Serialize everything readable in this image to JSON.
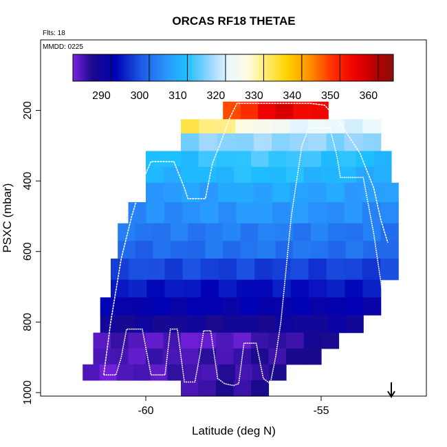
{
  "chart_data": {
    "type": "heatmap",
    "title": "ORCAS RF18 THETAE",
    "flights_label": "Flts: 18",
    "date_label": "MMDD: 0225",
    "xlabel": "Latitude (deg N)",
    "ylabel": "PSXC (mbar)",
    "xlim": [
      -63,
      -52
    ],
    "ylim": [
      1010,
      0
    ],
    "x_ticks": [
      -60,
      -55
    ],
    "x_tick_labels": [
      "-60",
      "-55"
    ],
    "y_ticks": [
      200,
      400,
      600,
      800,
      1000
    ],
    "y_tick_labels": [
      "200",
      "400",
      "600",
      "800",
      "1000"
    ],
    "colorbar": {
      "min": 280,
      "max": 364,
      "ticks": [
        290,
        300,
        310,
        320,
        330,
        340,
        350,
        360
      ],
      "tick_labels": [
        "290",
        "300",
        "310",
        "320",
        "330",
        "340",
        "350",
        "360"
      ],
      "stops": [
        {
          "v": 280,
          "c": "#7a22e0"
        },
        {
          "v": 285,
          "c": "#1a0a8c"
        },
        {
          "v": 291,
          "c": "#0000b4"
        },
        {
          "v": 298,
          "c": "#1e5ae6"
        },
        {
          "v": 305,
          "c": "#2a9aff"
        },
        {
          "v": 310,
          "c": "#1ec0ff"
        },
        {
          "v": 316,
          "c": "#9ad6ff"
        },
        {
          "v": 321,
          "c": "#eaf8ff"
        },
        {
          "v": 326,
          "c": "#fffbe0"
        },
        {
          "v": 330,
          "c": "#ffee80"
        },
        {
          "v": 336,
          "c": "#ffd400"
        },
        {
          "v": 342,
          "c": "#ff9000"
        },
        {
          "v": 348,
          "c": "#ff3000"
        },
        {
          "v": 354,
          "c": "#ee0000"
        },
        {
          "v": 360,
          "c": "#b00000"
        },
        {
          "v": 364,
          "c": "#8a1010"
        }
      ]
    },
    "rows": [
      {
        "p_top": 175,
        "p_bot": 225,
        "x0": -57.8,
        "x1": -54.8,
        "t_left": 343,
        "t_mid": 356,
        "t_right": 352
      },
      {
        "p_top": 225,
        "p_bot": 265,
        "x0": -59.0,
        "x1": -53.3,
        "t_left": 334,
        "t_mid": 322,
        "t_right": 320
      },
      {
        "p_top": 265,
        "p_bot": 315,
        "x0": -59.0,
        "x1": -53.3,
        "t_left": 315,
        "t_mid": 316,
        "t_right": 315
      },
      {
        "p_top": 315,
        "p_bot": 360,
        "x0": -60.0,
        "x1": -53.0,
        "t_left": 309,
        "t_mid": 312,
        "t_right": 309
      },
      {
        "p_top": 360,
        "p_bot": 405,
        "x0": -60.0,
        "x1": -53.0,
        "t_left": 308,
        "t_mid": 310,
        "t_right": 307
      },
      {
        "p_top": 405,
        "p_bot": 460,
        "x0": -60.0,
        "x1": -52.8,
        "t_left": 305,
        "t_mid": 307,
        "t_right": 305
      },
      {
        "p_top": 460,
        "p_bot": 520,
        "x0": -60.5,
        "x1": -52.8,
        "t_left": 303,
        "t_mid": 305,
        "t_right": 303
      },
      {
        "p_top": 520,
        "p_bot": 570,
        "x0": -60.8,
        "x1": -52.8,
        "t_left": 301,
        "t_mid": 302,
        "t_right": 301
      },
      {
        "p_top": 570,
        "p_bot": 620,
        "x0": -60.8,
        "x1": -52.8,
        "t_left": 299,
        "t_mid": 301,
        "t_right": 300
      },
      {
        "p_top": 620,
        "p_bot": 680,
        "x0": -61.0,
        "x1": -52.8,
        "t_left": 297,
        "t_mid": 296,
        "t_right": 296
      },
      {
        "p_top": 680,
        "p_bot": 730,
        "x0": -61.0,
        "x1": -53.3,
        "t_left": 293,
        "t_mid": 292,
        "t_right": 293
      },
      {
        "p_top": 730,
        "p_bot": 780,
        "x0": -61.3,
        "x1": -53.3,
        "t_left": 290,
        "t_mid": 290,
        "t_right": 290
      },
      {
        "p_top": 780,
        "p_bot": 830,
        "x0": -61.3,
        "x1": -53.8,
        "t_left": 287,
        "t_mid": 286,
        "t_right": 288
      },
      {
        "p_top": 830,
        "p_bot": 875,
        "x0": -61.5,
        "x1": -54.5,
        "t_left": 283,
        "t_mid": 281,
        "t_right": 286
      },
      {
        "p_top": 875,
        "p_bot": 920,
        "x0": -61.5,
        "x1": -55.0,
        "t_left": 282,
        "t_mid": 283,
        "t_right": 285
      },
      {
        "p_top": 920,
        "p_bot": 965,
        "x0": -61.8,
        "x1": -56.0,
        "t_left": 281,
        "t_mid": 283,
        "t_right": 284
      },
      {
        "p_top": 965,
        "p_bot": 1010,
        "x0": -59.0,
        "x1": -56.5,
        "t_left": 283,
        "t_mid": 284,
        "t_right": 285
      }
    ],
    "flight_track": [
      [
        -61.2,
        950
      ],
      [
        -60.85,
        950
      ],
      [
        -60.7,
        900
      ],
      [
        -60.55,
        820
      ],
      [
        -60.1,
        820
      ],
      [
        -59.85,
        950
      ],
      [
        -59.45,
        950
      ],
      [
        -59.3,
        820
      ],
      [
        -59.1,
        820
      ],
      [
        -58.9,
        970
      ],
      [
        -58.6,
        970
      ],
      [
        -58.45,
        890
      ],
      [
        -58.35,
        825
      ],
      [
        -58.15,
        825
      ],
      [
        -57.95,
        960
      ],
      [
        -57.75,
        975
      ],
      [
        -57.5,
        980
      ],
      [
        -57.35,
        975
      ],
      [
        -57.2,
        860
      ],
      [
        -56.85,
        860
      ],
      [
        -56.65,
        960
      ],
      [
        -56.45,
        975
      ],
      [
        -56.3,
        900
      ],
      [
        -56.15,
        800
      ],
      [
        -56.05,
        700
      ],
      [
        -55.95,
        600
      ],
      [
        -55.85,
        500
      ],
      [
        -55.7,
        400
      ],
      [
        -55.55,
        300
      ],
      [
        -55.35,
        250
      ],
      [
        -54.75,
        250
      ],
      [
        -54.55,
        330
      ],
      [
        -54.45,
        390
      ],
      [
        -53.8,
        390
      ],
      [
        -53.5,
        550
      ],
      [
        -53.25,
        720
      ]
    ],
    "flight_track_upper": [
      [
        -61.2,
        950
      ],
      [
        -61.0,
        800
      ],
      [
        -60.7,
        620
      ],
      [
        -60.4,
        500
      ],
      [
        -60.1,
        400
      ],
      [
        -59.85,
        345
      ],
      [
        -59.2,
        345
      ],
      [
        -58.9,
        420
      ],
      [
        -58.8,
        450
      ],
      [
        -58.3,
        450
      ],
      [
        -58.1,
        350
      ],
      [
        -57.9,
        300
      ],
      [
        -57.6,
        220
      ],
      [
        -57.4,
        180
      ],
      [
        -55.3,
        180
      ],
      [
        -54.9,
        185
      ],
      [
        -54.5,
        230
      ],
      [
        -53.9,
        320
      ],
      [
        -53.5,
        420
      ],
      [
        -53.3,
        510
      ],
      [
        -53.1,
        575
      ]
    ],
    "arrow_marker_x": -53.0
  }
}
